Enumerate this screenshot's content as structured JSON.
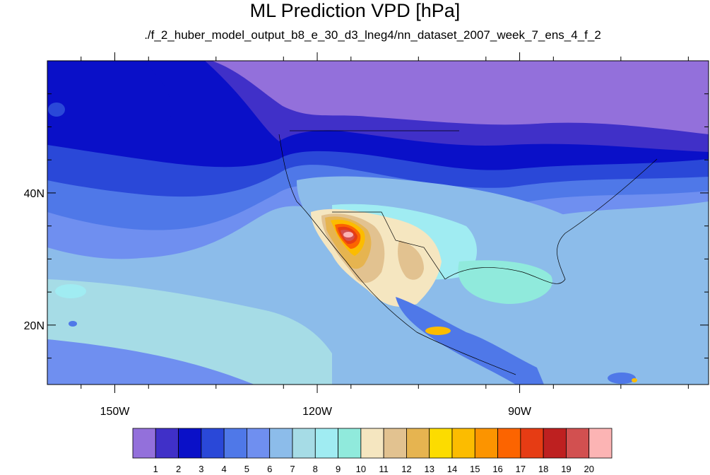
{
  "title": "ML Prediction VPD [hPa]",
  "subtitle": "./f_2_huber_model_output_b8_e_30_d3_lneg4/nn_dataset_2007_week_7_ens_4_f_2",
  "axes": {
    "lat_ticks": [
      {
        "value": 40,
        "label": "40N"
      },
      {
        "value": 20,
        "label": "20N"
      }
    ],
    "lon_ticks": [
      {
        "value": -150,
        "label": "150W"
      },
      {
        "value": -120,
        "label": "120W"
      },
      {
        "value": -90,
        "label": "90W"
      }
    ],
    "lon_range": [
      -160,
      -62
    ],
    "lat_range": [
      11,
      60
    ]
  },
  "colorbar": {
    "colors": [
      "#9370db",
      "#4030c8",
      "#0a10c8",
      "#2a48d8",
      "#4f78e8",
      "#6f8ff0",
      "#8cbcea",
      "#a6dce6",
      "#a0ecf2",
      "#90eadc",
      "#f5e6c0",
      "#e2c290",
      "#e6b450",
      "#fcdc00",
      "#fcbc00",
      "#fc9400",
      "#fc6400",
      "#e63c14",
      "#be2020",
      "#d25050",
      "#fcb4b4"
    ],
    "labels": [
      "1",
      "2",
      "3",
      "4",
      "5",
      "6",
      "7",
      "8",
      "9",
      "10",
      "11",
      "12",
      "13",
      "14",
      "15",
      "16",
      "17",
      "18",
      "19",
      "20"
    ]
  }
}
